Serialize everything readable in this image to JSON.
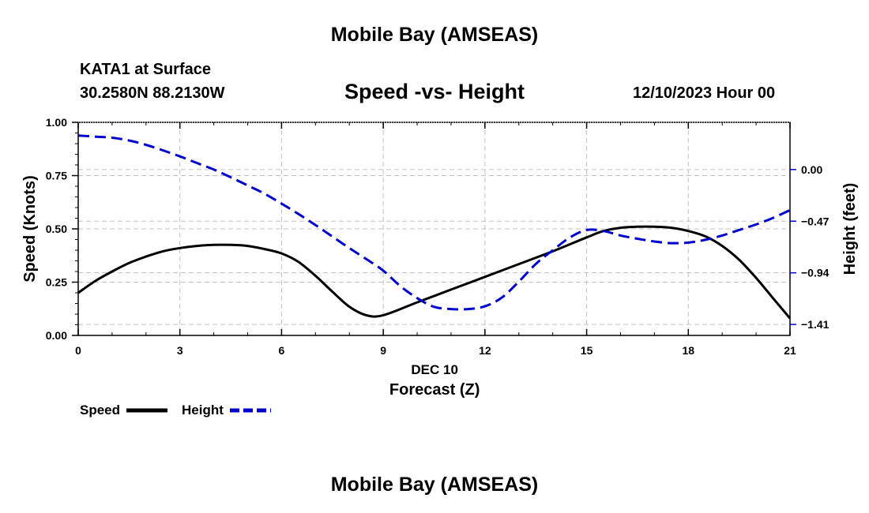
{
  "header": {
    "title": "Mobile Bay (AMSEAS)",
    "station": "KATA1 at Surface",
    "coordinates": "30.2580N  88.2130W",
    "chart_title": "Speed -vs- Height",
    "datetime": "12/10/2023 Hour 00"
  },
  "footer": {
    "title": "Mobile Bay (AMSEAS)"
  },
  "colors": {
    "speed": "#000000",
    "height": "#0000cc",
    "grid": "#c0c0c0"
  },
  "chart_data": {
    "type": "line",
    "title": "Speed -vs- Height",
    "xlabel": "Forecast (Z)",
    "xdate_label": "DEC 10",
    "ylabel": "Speed (Knots)",
    "y2label": "Height (feet)",
    "xlim": [
      0,
      21
    ],
    "ylim": [
      0,
      1
    ],
    "y2lim": [
      -1.51,
      0.43
    ],
    "x_ticks": [
      0,
      3,
      6,
      9,
      12,
      15,
      18,
      21
    ],
    "x_tick_labels": [
      "0",
      "3",
      "6",
      "9",
      "12",
      "15",
      "18",
      "21"
    ],
    "y_ticks": [
      0,
      0.25,
      0.5,
      0.75,
      1.0
    ],
    "y_tick_labels": [
      "0.00",
      "0.25",
      "0.50",
      "0.75",
      "1.00"
    ],
    "y2_ticks": [
      0.0,
      -0.47,
      -0.94,
      -1.41
    ],
    "y2_tick_labels": [
      "0.00",
      "−0.47",
      "−0.94",
      "−1.41"
    ],
    "grid": true,
    "legend": [
      {
        "name": "Speed",
        "style": "solid"
      },
      {
        "name": "Height",
        "style": "dashed"
      }
    ],
    "series": [
      {
        "name": "Speed",
        "axis": "left",
        "x": [
          0,
          0.5,
          1,
          1.5,
          2,
          2.5,
          3,
          3.5,
          4,
          4.5,
          5,
          5.5,
          6,
          6.5,
          7,
          7.5,
          8,
          8.5,
          9,
          10,
          11,
          12,
          13,
          14,
          15,
          15.5,
          16,
          16.5,
          17,
          17.5,
          18,
          18.5,
          19,
          19.5,
          20,
          20.5,
          21
        ],
        "values": [
          0.2,
          0.255,
          0.3,
          0.34,
          0.37,
          0.395,
          0.41,
          0.42,
          0.425,
          0.425,
          0.42,
          0.405,
          0.385,
          0.345,
          0.28,
          0.205,
          0.135,
          0.095,
          0.095,
          0.155,
          0.215,
          0.275,
          0.335,
          0.395,
          0.46,
          0.49,
          0.505,
          0.51,
          0.51,
          0.505,
          0.49,
          0.465,
          0.42,
          0.355,
          0.27,
          0.175,
          0.08
        ]
      },
      {
        "name": "Height",
        "axis": "right",
        "x": [
          0,
          0.5,
          1,
          1.5,
          2,
          2.5,
          3,
          3.5,
          4,
          4.5,
          5,
          5.5,
          6,
          6.5,
          7,
          7.5,
          8,
          8.5,
          9,
          9.5,
          10,
          10.5,
          11,
          11.5,
          12,
          12.5,
          13,
          13.5,
          14,
          14.5,
          15,
          15.5,
          16,
          16.5,
          17,
          17.5,
          18,
          18.5,
          19,
          19.5,
          20,
          20.5,
          21
        ],
        "values": [
          0.31,
          0.3,
          0.29,
          0.265,
          0.225,
          0.175,
          0.12,
          0.06,
          0.0,
          -0.07,
          -0.145,
          -0.22,
          -0.31,
          -0.405,
          -0.505,
          -0.61,
          -0.715,
          -0.815,
          -0.92,
          -1.06,
          -1.17,
          -1.25,
          -1.27,
          -1.27,
          -1.245,
          -1.165,
          -1.02,
          -0.86,
          -0.735,
          -0.62,
          -0.55,
          -0.56,
          -0.6,
          -0.63,
          -0.655,
          -0.67,
          -0.665,
          -0.64,
          -0.6,
          -0.55,
          -0.5,
          -0.44,
          -0.37
        ]
      }
    ]
  }
}
